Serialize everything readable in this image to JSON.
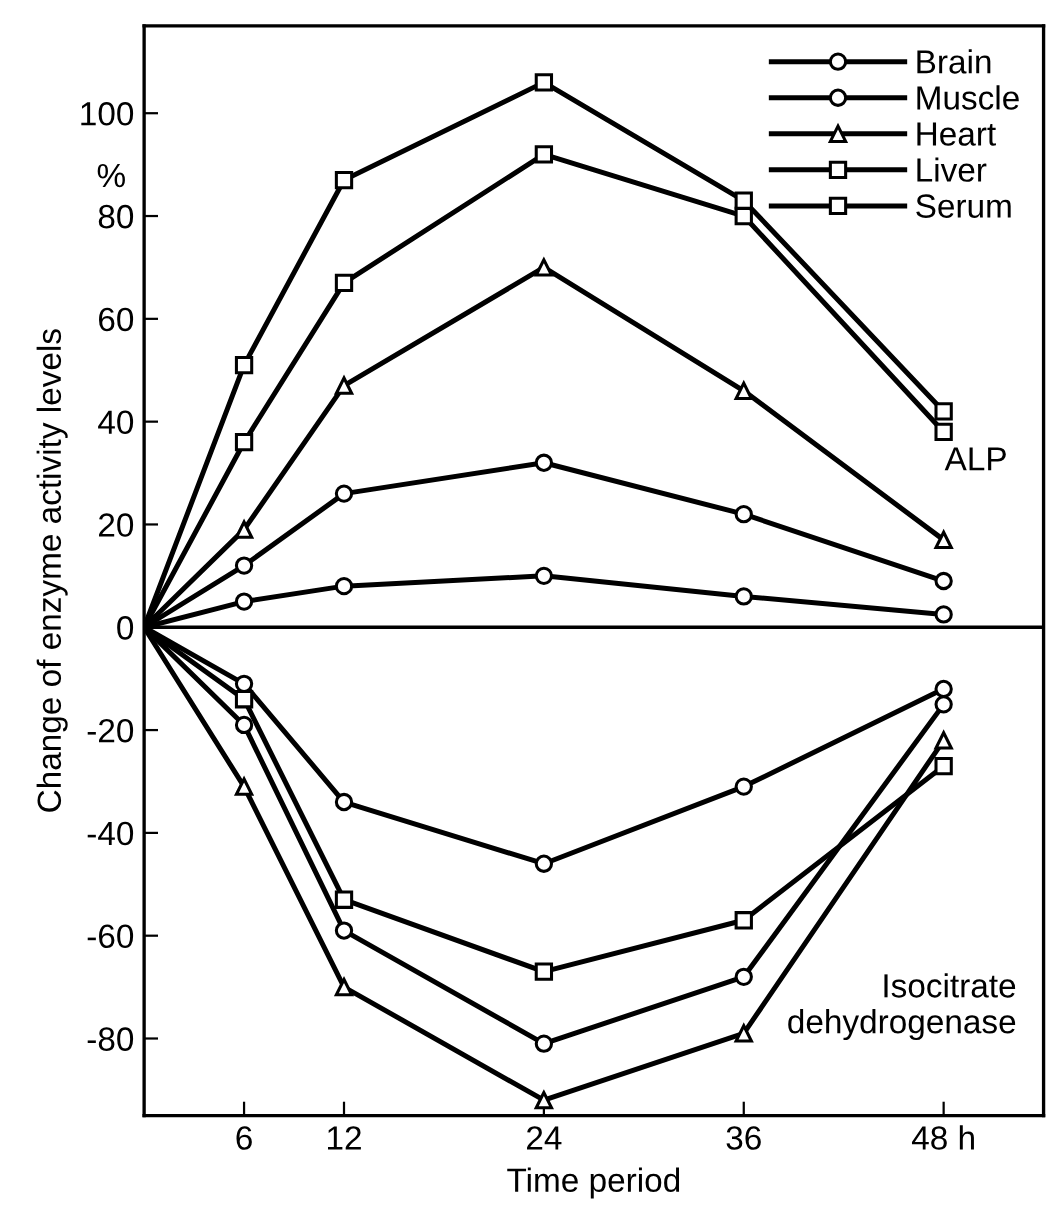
{
  "chart_data": {
    "type": "line",
    "xlabel": "Time period",
    "ylabel": "Change of enzyme activity levels",
    "x": [
      0,
      6,
      12,
      24,
      36,
      48
    ],
    "series": [
      {
        "name": "Brain",
        "color": "#000000",
        "marker": "circle",
        "values": [
          0,
          5,
          8,
          10,
          6,
          2.5
        ]
      },
      {
        "name": "Muscle",
        "color": "#000000",
        "marker": "circle",
        "values": [
          0,
          12,
          26,
          32,
          22,
          9
        ]
      },
      {
        "name": "Heart",
        "color": "#000000",
        "marker": "triangle",
        "values": [
          0,
          19,
          47,
          70,
          46,
          17
        ]
      },
      {
        "name": "Liver",
        "color": "#000000",
        "marker": "square",
        "values": [
          0,
          36,
          67,
          92,
          80,
          38
        ]
      },
      {
        "name": "Serum",
        "color": "#000000",
        "marker": "square",
        "values": [
          0,
          51,
          87,
          106,
          83,
          42
        ]
      },
      {
        "color": "#000000",
        "marker": "circle",
        "values": [
          0,
          -19,
          -59,
          -81,
          -68,
          -15
        ]
      },
      {
        "color": "#000000",
        "marker": "circle",
        "values": [
          0,
          -11,
          -34,
          -46,
          -31,
          -12
        ]
      },
      {
        "color": "#000000",
        "marker": "triangle",
        "values": [
          0,
          -31,
          -70,
          -92,
          -79,
          -22
        ]
      },
      {
        "color": "#000000",
        "marker": "square",
        "values": [
          0,
          -14,
          -53,
          -67,
          -57,
          -27
        ]
      }
    ],
    "xlim": [
      0,
      54
    ],
    "ylim": [
      -95,
      117
    ],
    "xticks": [
      6,
      12,
      24,
      36,
      {
        "value": 48,
        "label": "48 h"
      }
    ],
    "yticks": [
      -80,
      -60,
      -40,
      -20,
      0,
      20,
      40,
      60,
      80,
      100
    ],
    "ref_lines": [
      {
        "axis": "y",
        "value": 0,
        "color": "#000000"
      }
    ],
    "annotations": [
      "%",
      "ALP",
      "Isocitrate\ndehydrogenase"
    ],
    "legend": "top right",
    "grid": false,
    "line_style": "solid"
  }
}
